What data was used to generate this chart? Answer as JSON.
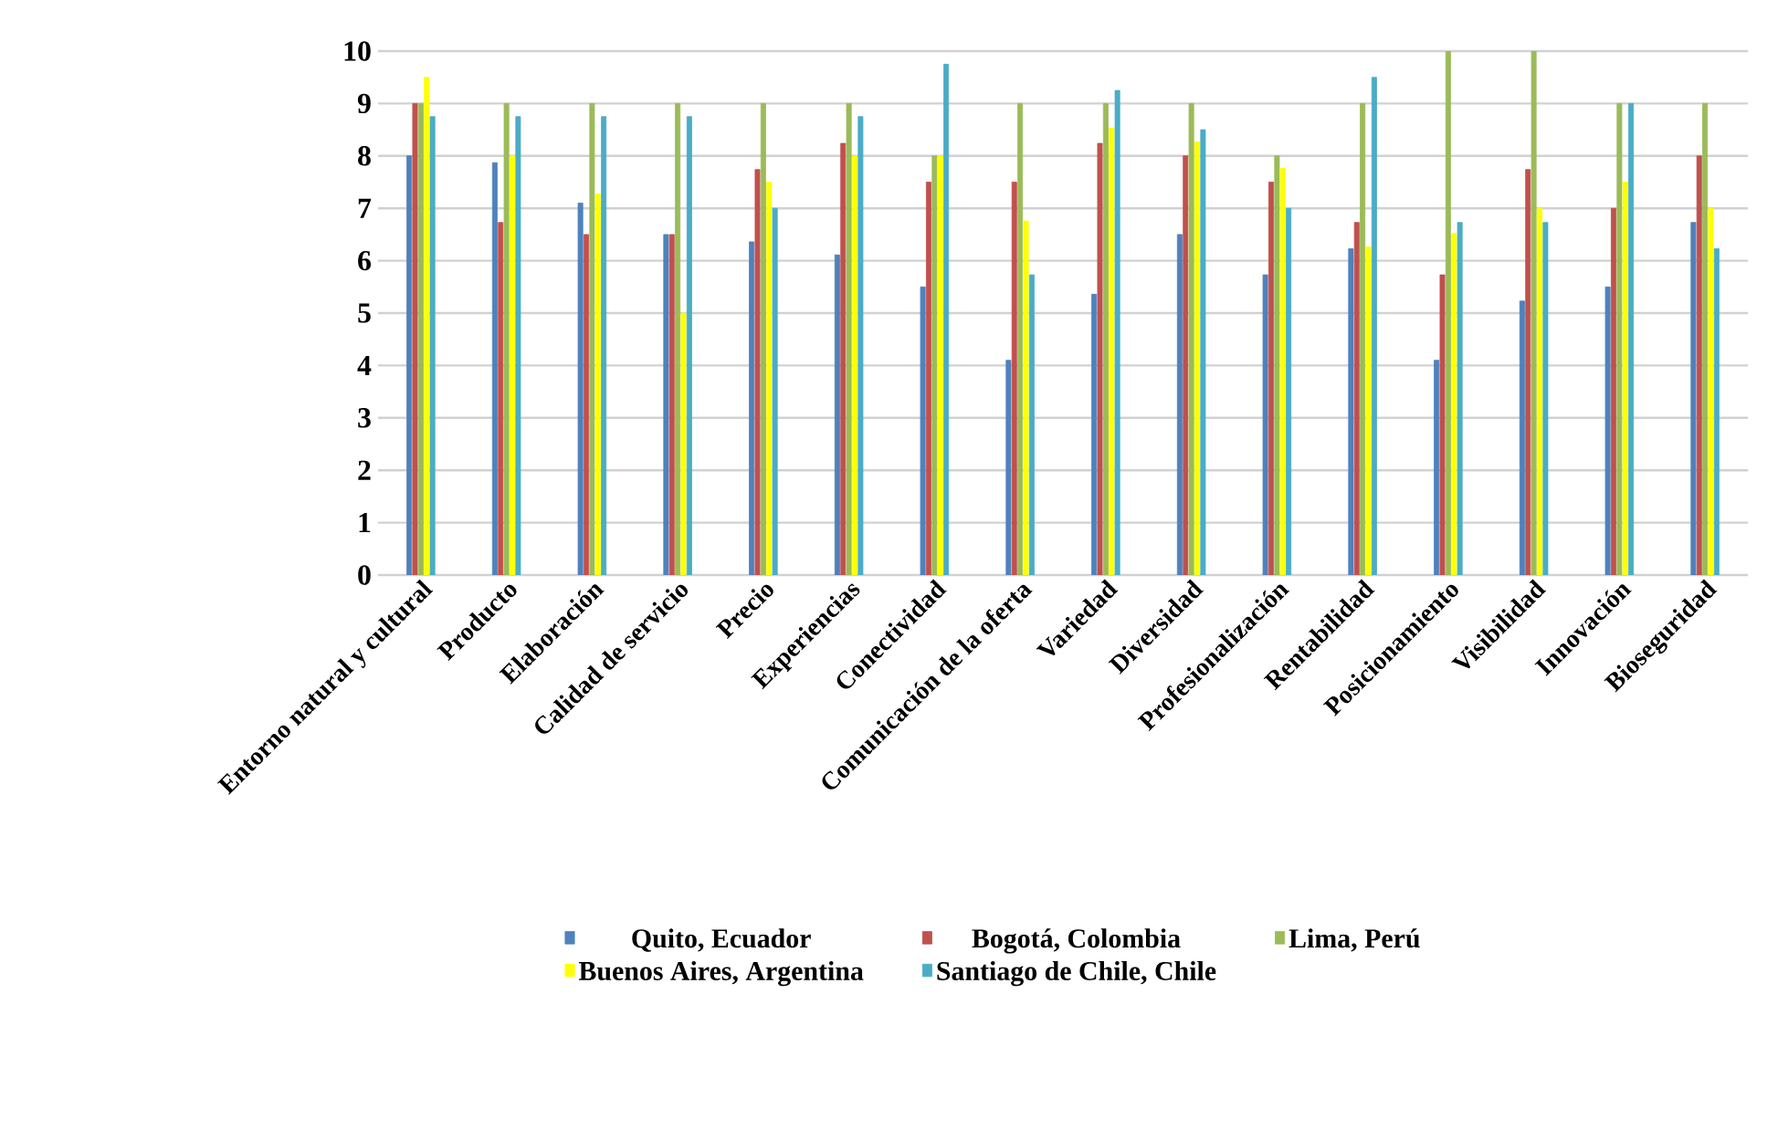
{
  "chart_data": {
    "type": "bar",
    "categories": [
      "Entorno natural y cultural",
      "Producto",
      "Elaboración",
      "Calidad de servicio",
      "Precio",
      "Experiencias",
      "Conectividad",
      "Comunicación de la oferta",
      "Variedad",
      "Diversidad",
      "Profesionalización",
      "Rentabilidad",
      "Posicionamiento",
      "Visibilidad",
      "Innovación",
      "Bioseguridad"
    ],
    "series": [
      {
        "name": "Quito, Ecuador",
        "color": "#4f81bd",
        "values": [
          8.0,
          7.87,
          7.1,
          6.5,
          6.36,
          6.11,
          5.5,
          4.1,
          5.36,
          6.5,
          5.73,
          6.23,
          4.1,
          5.23,
          5.5,
          6.73
        ]
      },
      {
        "name": "Bogotá, Colombia",
        "color": "#c0504d",
        "values": [
          9.0,
          6.73,
          6.5,
          6.5,
          7.74,
          8.24,
          7.5,
          7.5,
          8.24,
          8.0,
          7.5,
          6.73,
          5.73,
          7.74,
          7.0,
          8.0
        ]
      },
      {
        "name": "Lima, Perú",
        "color": "#9bbb59",
        "values": [
          9.0,
          9.0,
          9.0,
          9.0,
          9.0,
          9.0,
          8.0,
          9.0,
          9.0,
          9.0,
          8.0,
          9.0,
          10.0,
          10.0,
          9.0,
          9.0
        ]
      },
      {
        "name": "Buenos Aires, Argentina",
        "color": "#ffff00",
        "values": [
          9.5,
          8.0,
          7.27,
          5.0,
          7.5,
          8.0,
          8.0,
          6.76,
          8.53,
          8.27,
          7.76,
          6.26,
          6.52,
          7.0,
          7.5,
          7.0
        ]
      },
      {
        "name": "Santiago de Chile, Chile",
        "color": "#4bacc6",
        "values": [
          8.75,
          8.75,
          8.75,
          8.75,
          7.0,
          8.75,
          9.75,
          5.73,
          9.25,
          8.5,
          7.0,
          9.5,
          6.73,
          6.73,
          9.0,
          6.23
        ]
      }
    ],
    "ylim": [
      0,
      10
    ],
    "yticks": [
      0,
      1,
      2,
      3,
      4,
      5,
      6,
      7,
      8,
      9,
      10
    ],
    "grid": "y",
    "legend": "bottom"
  }
}
